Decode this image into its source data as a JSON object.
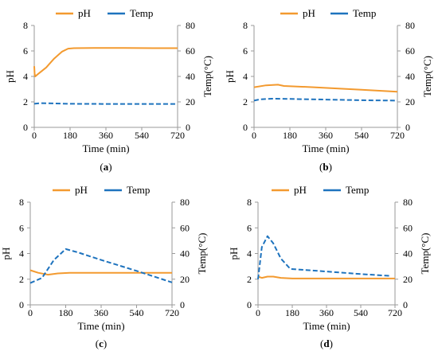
{
  "colors": {
    "ph": "#F39A2F",
    "temp": "#1E73BE",
    "axis": "#9A9A9A",
    "text": "#000000"
  },
  "legend": {
    "ph": "pH",
    "temp": "Temp"
  },
  "chart_data": [
    {
      "type": "line",
      "caption": "a",
      "xlabel": "Time (min)",
      "ylabel_left": "pH",
      "ylabel_right": "Temp(°C)",
      "x_ticks": [
        "0",
        "180",
        "360",
        "540",
        "720"
      ],
      "yl_ticks": [
        "0",
        "2",
        "4",
        "6",
        "8"
      ],
      "yr_ticks": [
        "0",
        "20",
        "40",
        "60",
        "80"
      ],
      "xlim": [
        0,
        720
      ],
      "ylim_left": [
        0,
        8
      ],
      "ylim_right": [
        0,
        80
      ],
      "grid": false,
      "legend_position": "top",
      "series": [
        {
          "name": "pH",
          "axis": "left",
          "style": "solid",
          "points": [
            [
              0,
              4.8
            ],
            [
              2,
              4.2
            ],
            [
              5,
              4.0
            ],
            [
              20,
              4.2
            ],
            [
              60,
              4.7
            ],
            [
              100,
              5.4
            ],
            [
              140,
              5.95
            ],
            [
              170,
              6.18
            ],
            [
              200,
              6.22
            ],
            [
              300,
              6.23
            ],
            [
              450,
              6.23
            ],
            [
              600,
              6.22
            ],
            [
              720,
              6.22
            ]
          ]
        },
        {
          "name": "Temp",
          "axis": "right",
          "style": "dashed",
          "points": [
            [
              0,
              18.5
            ],
            [
              30,
              19
            ],
            [
              90,
              18.8
            ],
            [
              180,
              18.5
            ],
            [
              360,
              18.4
            ],
            [
              540,
              18.4
            ],
            [
              720,
              18.4
            ]
          ]
        }
      ]
    },
    {
      "type": "line",
      "caption": "b",
      "xlabel": "Time (min)",
      "ylabel_left": "pH",
      "ylabel_right": "Temp(°C)",
      "x_ticks": [
        "0",
        "180",
        "360",
        "540",
        "720"
      ],
      "yl_ticks": [
        "0",
        "2",
        "4",
        "6",
        "8"
      ],
      "yr_ticks": [
        "0",
        "20",
        "40",
        "60",
        "80"
      ],
      "xlim": [
        0,
        720
      ],
      "ylim_left": [
        0,
        8
      ],
      "ylim_right": [
        0,
        80
      ],
      "grid": false,
      "legend_position": "top",
      "series": [
        {
          "name": "pH",
          "axis": "left",
          "style": "solid",
          "points": [
            [
              0,
              3.15
            ],
            [
              60,
              3.3
            ],
            [
              120,
              3.35
            ],
            [
              150,
              3.25
            ],
            [
              300,
              3.15
            ],
            [
              540,
              2.95
            ],
            [
              720,
              2.8
            ]
          ]
        },
        {
          "name": "Temp",
          "axis": "right",
          "style": "dashed",
          "points": [
            [
              0,
              21
            ],
            [
              30,
              22
            ],
            [
              90,
              22.5
            ],
            [
              180,
              22.3
            ],
            [
              360,
              21.8
            ],
            [
              540,
              21.3
            ],
            [
              720,
              21
            ]
          ]
        }
      ]
    },
    {
      "type": "line",
      "caption": "c",
      "xlabel": "Time (min)",
      "ylabel_left": "pH",
      "ylabel_right": "Temp(°C)",
      "x_ticks": [
        "0",
        "180",
        "360",
        "540",
        "720"
      ],
      "yl_ticks": [
        "0",
        "2",
        "4",
        "6",
        "8"
      ],
      "yr_ticks": [
        "0",
        "20",
        "40",
        "60",
        "80"
      ],
      "xlim": [
        0,
        720
      ],
      "ylim_left": [
        0,
        8
      ],
      "ylim_right": [
        0,
        80
      ],
      "grid": false,
      "legend_position": "top",
      "series": [
        {
          "name": "pH",
          "axis": "left",
          "style": "solid",
          "points": [
            [
              0,
              2.7
            ],
            [
              40,
              2.5
            ],
            [
              90,
              2.35
            ],
            [
              140,
              2.45
            ],
            [
              200,
              2.5
            ],
            [
              400,
              2.5
            ],
            [
              600,
              2.5
            ],
            [
              720,
              2.5
            ]
          ]
        },
        {
          "name": "Temp",
          "axis": "right",
          "style": "dashed",
          "points": [
            [
              0,
              17
            ],
            [
              60,
              21
            ],
            [
              120,
              35
            ],
            [
              180,
              43.5
            ],
            [
              240,
              41
            ],
            [
              360,
              35
            ],
            [
              540,
              26.5
            ],
            [
              720,
              17.5
            ]
          ]
        }
      ]
    },
    {
      "type": "line",
      "caption": "d",
      "xlabel": "Time (min)",
      "ylabel_left": "pH",
      "ylabel_right": "Temp(°C)",
      "x_ticks": [
        "0",
        "180",
        "360",
        "540",
        "720"
      ],
      "yl_ticks": [
        "0",
        "2",
        "4",
        "6",
        "8"
      ],
      "yr_ticks": [
        "0",
        "20",
        "40",
        "60",
        "80"
      ],
      "xlim": [
        0,
        720
      ],
      "ylim_left": [
        0,
        8
      ],
      "ylim_right": [
        0,
        80
      ],
      "grid": false,
      "legend_position": "top",
      "series": [
        {
          "name": "pH",
          "axis": "left",
          "style": "solid",
          "points": [
            [
              0,
              2.2
            ],
            [
              20,
              2.1
            ],
            [
              50,
              2.2
            ],
            [
              80,
              2.2
            ],
            [
              120,
              2.1
            ],
            [
              180,
              2.05
            ],
            [
              360,
              2.05
            ],
            [
              540,
              2.05
            ],
            [
              720,
              2.05
            ]
          ]
        },
        {
          "name": "Temp",
          "axis": "right",
          "style": "dashed",
          "points": [
            [
              0,
              20
            ],
            [
              20,
              45
            ],
            [
              50,
              53.5
            ],
            [
              80,
              48
            ],
            [
              120,
              36
            ],
            [
              170,
              28
            ],
            [
              360,
              26
            ],
            [
              540,
              24
            ],
            [
              700,
              22.5
            ]
          ]
        }
      ]
    }
  ]
}
